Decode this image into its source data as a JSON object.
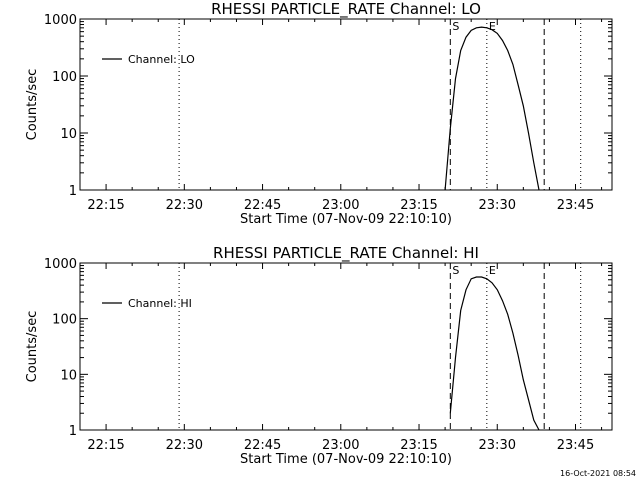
{
  "chart_data": [
    {
      "type": "line",
      "title": "RHESSI PARTICLE_RATE Channel: LO",
      "xlabel": "Start Time (07-Nov-09 22:10:10)",
      "ylabel": "Counts/sec",
      "xlim": [
        "22:10",
        "23:52"
      ],
      "ylim": [
        1,
        1000
      ],
      "yscale": "log",
      "x_ticks": [
        "22:15",
        "22:30",
        "22:45",
        "23:00",
        "23:15",
        "23:30",
        "23:45"
      ],
      "y_ticks": [
        "1",
        "10",
        "100",
        "1000"
      ],
      "grid": false,
      "legend": {
        "position": "top-left",
        "entries": [
          "Channel: LO"
        ]
      },
      "series": [
        {
          "name": "Channel: LO",
          "x": [
            "23:20:00",
            "23:21:00",
            "23:22:00",
            "23:23:00",
            "23:24:00",
            "23:25:00",
            "23:26:00",
            "23:27:00",
            "23:28:00",
            "23:29:00",
            "23:30:00",
            "23:31:00",
            "23:32:00",
            "23:33:00",
            "23:34:00",
            "23:35:00",
            "23:36:00",
            "23:37:00",
            "23:38:00"
          ],
          "y": [
            1,
            12,
            90,
            280,
            480,
            630,
            700,
            720,
            700,
            650,
            560,
            420,
            280,
            160,
            70,
            30,
            10,
            3,
            1
          ]
        }
      ],
      "annotations": [
        {
          "label": "S",
          "time": "23:21",
          "style": "dashed"
        },
        {
          "label": "E",
          "time": "23:28",
          "style": "dotted"
        }
      ],
      "extra_lines": [
        {
          "time": "22:29",
          "style": "dotted"
        },
        {
          "time": "23:39",
          "style": "dashed"
        },
        {
          "time": "23:46",
          "style": "dotted"
        }
      ]
    },
    {
      "type": "line",
      "title": "RHESSI PARTICLE_RATE Channel: HI",
      "xlabel": "Start Time (07-Nov-09 22:10:10)",
      "ylabel": "Counts/sec",
      "xlim": [
        "22:10",
        "23:52"
      ],
      "ylim": [
        1,
        1000
      ],
      "yscale": "log",
      "x_ticks": [
        "22:15",
        "22:30",
        "22:45",
        "23:00",
        "23:15",
        "23:30",
        "23:45"
      ],
      "y_ticks": [
        "1",
        "10",
        "100",
        "1000"
      ],
      "grid": false,
      "legend": {
        "position": "top-left",
        "entries": [
          "Channel: HI"
        ]
      },
      "series": [
        {
          "name": "Channel: HI",
          "x": [
            "23:21:00",
            "23:22:00",
            "23:23:00",
            "23:24:00",
            "23:25:00",
            "23:26:00",
            "23:27:00",
            "23:28:00",
            "23:29:00",
            "23:30:00",
            "23:31:00",
            "23:32:00",
            "23:33:00",
            "23:34:00",
            "23:35:00",
            "23:36:00",
            "23:37:00",
            "23:38:00"
          ],
          "y": [
            2,
            20,
            140,
            330,
            520,
            560,
            560,
            520,
            440,
            330,
            210,
            120,
            55,
            22,
            8,
            3.5,
            1.5,
            1
          ]
        }
      ],
      "annotations": [
        {
          "label": "S",
          "time": "23:21",
          "style": "dashed"
        },
        {
          "label": "E",
          "time": "23:28",
          "style": "dotted"
        }
      ],
      "extra_lines": [
        {
          "time": "22:29",
          "style": "dotted"
        },
        {
          "time": "23:39",
          "style": "dashed"
        },
        {
          "time": "23:46",
          "style": "dotted"
        }
      ]
    }
  ],
  "footer": {
    "timestamp": "16-Oct-2021 08:54"
  }
}
